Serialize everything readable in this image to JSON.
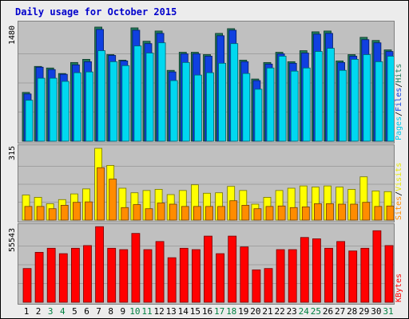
{
  "title": "Daily usage for October 2015",
  "chart_data": [
    {
      "type": "bar",
      "panel": "hits-files-pages",
      "ymax_label": "1480",
      "ylim": [
        0,
        1480
      ],
      "grid": true,
      "categories": [
        "1",
        "2",
        "3",
        "4",
        "5",
        "6",
        "7",
        "8",
        "9",
        "10",
        "11",
        "12",
        "13",
        "14",
        "15",
        "16",
        "17",
        "18",
        "19",
        "20",
        "21",
        "22",
        "23",
        "24",
        "25",
        "26",
        "27",
        "28",
        "29",
        "30",
        "31"
      ],
      "series": [
        {
          "name": "Hits",
          "color": "#1f7a5a",
          "values": [
            620,
            950,
            930,
            860,
            1000,
            1040,
            1450,
            1100,
            1030,
            1440,
            1270,
            1400,
            900,
            1130,
            1130,
            1100,
            1370,
            1430,
            1030,
            790,
            1000,
            1130,
            1010,
            1150,
            1390,
            1400,
            1020,
            1100,
            1320,
            1280,
            1160
          ]
        },
        {
          "name": "Files",
          "color": "#1040e0",
          "values": [
            600,
            940,
            910,
            850,
            970,
            1010,
            1420,
            1090,
            1020,
            1410,
            1240,
            1370,
            880,
            1110,
            1110,
            1080,
            1340,
            1410,
            1010,
            770,
            980,
            1110,
            990,
            1120,
            1360,
            1370,
            1000,
            1080,
            1290,
            1250,
            1140
          ]
        },
        {
          "name": "Pages",
          "color": "#00d8f0",
          "values": [
            520,
            800,
            800,
            760,
            870,
            880,
            1150,
            1010,
            960,
            1210,
            1120,
            1250,
            770,
            1000,
            840,
            870,
            990,
            1240,
            860,
            660,
            930,
            1080,
            890,
            930,
            1140,
            1180,
            900,
            1040,
            1100,
            1010,
            1080
          ]
        }
      ],
      "right_labels": [
        {
          "text": "Pages",
          "color": "#00c8e8"
        },
        {
          "text": "/",
          "color": "#000000"
        },
        {
          "text": "Files",
          "color": "#1040e0"
        },
        {
          "text": "/",
          "color": "#000000"
        },
        {
          "text": "Hits",
          "color": "#1f7a5a"
        }
      ]
    },
    {
      "type": "bar",
      "panel": "visits-sites",
      "ymax_label": "315",
      "ylim": [
        0,
        315
      ],
      "grid": true,
      "categories": [
        "1",
        "2",
        "3",
        "4",
        "5",
        "6",
        "7",
        "8",
        "9",
        "10",
        "11",
        "12",
        "13",
        "14",
        "15",
        "16",
        "17",
        "18",
        "19",
        "20",
        "21",
        "22",
        "23",
        "24",
        "25",
        "26",
        "27",
        "28",
        "29",
        "30",
        "31"
      ],
      "series": [
        {
          "name": "Visits",
          "color": "#ffff00",
          "values": [
            110,
            100,
            72,
            90,
            115,
            137,
            315,
            240,
            140,
            120,
            130,
            135,
            112,
            130,
            155,
            118,
            120,
            148,
            130,
            70,
            100,
            130,
            140,
            150,
            145,
            150,
            145,
            135,
            190,
            128,
            125
          ]
        },
        {
          "name": "Sites",
          "color": "#ff8c00",
          "values": [
            60,
            60,
            50,
            65,
            78,
            80,
            230,
            180,
            55,
            68,
            50,
            75,
            70,
            60,
            60,
            60,
            60,
            85,
            65,
            50,
            60,
            62,
            55,
            58,
            72,
            72,
            70,
            70,
            78,
            60,
            62
          ]
        }
      ],
      "right_labels": [
        {
          "text": "Sites",
          "color": "#ff8c00"
        },
        {
          "text": "/",
          "color": "#000000"
        },
        {
          "text": "Visits",
          "color": "#e8e800"
        }
      ]
    },
    {
      "type": "bar",
      "panel": "kbytes",
      "ymax_label": "55543",
      "ylim": [
        0,
        55543
      ],
      "grid": true,
      "categories": [
        "1",
        "2",
        "3",
        "4",
        "5",
        "6",
        "7",
        "8",
        "9",
        "10",
        "11",
        "12",
        "13",
        "14",
        "15",
        "16",
        "17",
        "18",
        "19",
        "20",
        "21",
        "22",
        "23",
        "24",
        "25",
        "26",
        "27",
        "28",
        "29",
        "30",
        "31"
      ],
      "series": [
        {
          "name": "KBytes",
          "color": "#ff0000",
          "values": [
            25000,
            37000,
            40000,
            36000,
            40000,
            42000,
            56000,
            40000,
            39000,
            51000,
            39000,
            45000,
            33000,
            40000,
            39000,
            49000,
            36000,
            49000,
            41000,
            24000,
            25000,
            39000,
            39000,
            48000,
            47000,
            40000,
            45000,
            38000,
            40000,
            53000,
            42000
          ]
        }
      ],
      "right_labels": [
        {
          "text": "KBytes",
          "color": "#ff0000"
        }
      ]
    }
  ],
  "x_label_colors": {
    "default": "#000000",
    "weekend": "#008040"
  },
  "weekend_days": [
    "3",
    "4",
    "10",
    "11",
    "17",
    "18",
    "24",
    "25",
    "31"
  ]
}
